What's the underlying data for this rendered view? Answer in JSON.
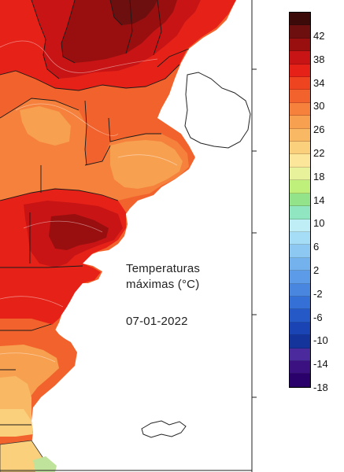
{
  "map": {
    "title_line1": "Temperaturas",
    "title_line2": "máximas (°C)",
    "date": "07-01-2022",
    "colors": {
      "above_42": "#3d0a0a",
      "40_42": "#6d0f0f",
      "38_40": "#990f0f",
      "36_38": "#c81414",
      "34_36": "#e62218",
      "32_34": "#ef4420",
      "30_32": "#f2622c",
      "28_30": "#f5813c",
      "26_28": "#f7a050",
      "24_26": "#f9b864",
      "22_24": "#fbd07c",
      "20_22": "#fbe69a",
      "sea": "#ffffff",
      "boundaries": "#1a1a1a"
    }
  },
  "legend": {
    "colors": [
      "#3d0a0a",
      "#6d0f0f",
      "#990f0f",
      "#c81414",
      "#e62218",
      "#ef4420",
      "#f2622c",
      "#f5813c",
      "#f7a050",
      "#f9b864",
      "#fbd07c",
      "#fbe69a",
      "#e7f29a",
      "#bff07c",
      "#93e38a",
      "#8fe6c0",
      "#bfeef6",
      "#a5dcf6",
      "#8cc8f2",
      "#74b2ee",
      "#5c9be8",
      "#4886e0",
      "#3570d6",
      "#2559c8",
      "#1a43b4",
      "#14349c",
      "#4a2a9c",
      "#3b1080",
      "#2a006a"
    ],
    "labels": [
      "42",
      "38",
      "34",
      "30",
      "26",
      "22",
      "18",
      "14",
      "10",
      "6",
      "2",
      "-2",
      "-6",
      "-10",
      "-14",
      "-18"
    ]
  }
}
